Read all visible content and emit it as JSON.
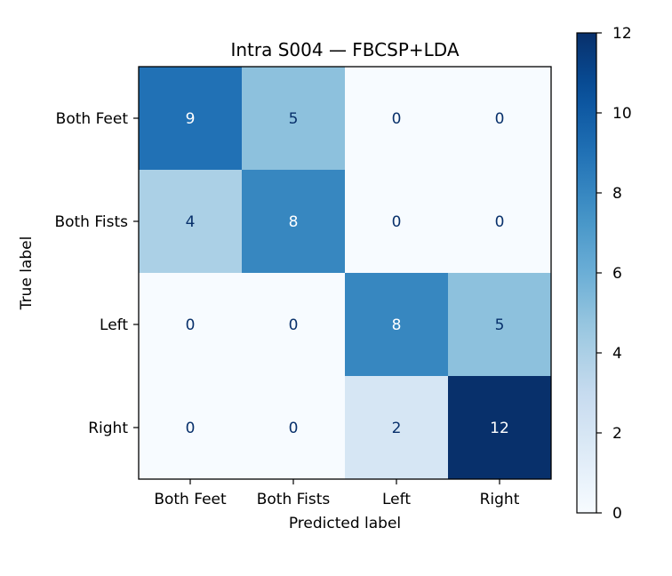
{
  "chart_data": {
    "type": "heatmap",
    "title": "Intra S004 — FBCSP+LDA",
    "xlabel": "Predicted label",
    "ylabel": "True label",
    "x_categories": [
      "Both Feet",
      "Both Fists",
      "Left",
      "Right"
    ],
    "y_categories": [
      "Both Feet",
      "Both Fists",
      "Left",
      "Right"
    ],
    "matrix": [
      [
        9,
        5,
        0,
        0
      ],
      [
        4,
        8,
        0,
        0
      ],
      [
        0,
        0,
        8,
        5
      ],
      [
        0,
        0,
        2,
        12
      ]
    ],
    "colorbar": {
      "min": 0,
      "max": 12,
      "ticks": [
        0,
        2,
        4,
        6,
        8,
        10,
        12
      ],
      "colormap": "Blues"
    },
    "grid": false
  }
}
